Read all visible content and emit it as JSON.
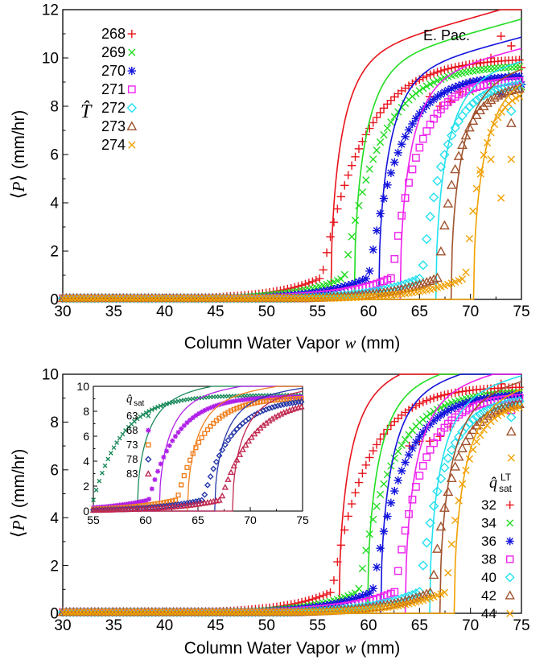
{
  "chart_data": [
    {
      "type": "scatter",
      "annotation": "E. Pac.",
      "xlabel_text": "Column Water Vapor ",
      "xlabel_var": "w",
      "xlabel_unit": " (mm)",
      "ylabel_text": "(mm/hr)",
      "legend_title": "T̂",
      "xlim": [
        30,
        75
      ],
      "ylim": [
        0,
        12
      ],
      "xticks": [
        "30",
        "35",
        "40",
        "45",
        "50",
        "55",
        "60",
        "65",
        "70",
        "75"
      ],
      "yticks": [
        "0",
        "2",
        "4",
        "6",
        "8",
        "10",
        "12"
      ],
      "series": [
        {
          "name": "268",
          "marker": "plus",
          "color": "#e8141c",
          "onset": 55.4,
          "fit_onset": 56.3,
          "sat": 10.0,
          "k": 0.11,
          "pts": [
            [
              66,
              8.4
            ],
            [
              67,
              8.0
            ],
            [
              68,
              8.2
            ],
            [
              69,
              8.6
            ],
            [
              70,
              9.0
            ],
            [
              71,
              9.8
            ],
            [
              72,
              10.0
            ],
            [
              73,
              10.9
            ],
            [
              74,
              10.5
            ],
            [
              75,
              9.6
            ]
          ]
        },
        {
          "name": "269",
          "marker": "x",
          "color": "#22dd22",
          "onset": 57.6,
          "fit_onset": 58.6,
          "sat": 9.7,
          "k": 0.13,
          "pts": [
            [
              70,
              8.6
            ],
            [
              72,
              9.0
            ],
            [
              74,
              9.3
            ],
            [
              75,
              8.8
            ]
          ]
        },
        {
          "name": "270",
          "marker": "star",
          "color": "#1414dd",
          "onset": 60.0,
          "fit_onset": 61.0,
          "sat": 9.3,
          "k": 0.15,
          "pts": [
            [
              73,
              8.5
            ],
            [
              75,
              8.9
            ]
          ]
        },
        {
          "name": "271",
          "marker": "square",
          "color": "#ee22ee",
          "onset": 62.3,
          "fit_onset": 63.1,
          "sat": 9.1,
          "k": 0.18,
          "pts": [
            [
              74,
              8.8
            ]
          ]
        },
        {
          "name": "272",
          "marker": "diamond",
          "color": "#22e0ee",
          "onset": 65.2,
          "fit_onset": 66.6,
          "sat": 9.0,
          "k": 0.2,
          "pts": [
            [
              74,
              7.8
            ]
          ]
        },
        {
          "name": "273",
          "marker": "triangle",
          "color": "#a0522d",
          "onset": 66.8,
          "fit_onset": 68.1,
          "sat": 8.9,
          "k": 0.22,
          "pts": [
            [
              74,
              7.3
            ]
          ]
        },
        {
          "name": "274",
          "marker": "x",
          "color": "#f0a000",
          "onset": 69.5,
          "fit_onset": 70.3,
          "sat": 8.8,
          "k": 0.26,
          "pts": [
            [
              71,
              5.2
            ],
            [
              72,
              5.8
            ],
            [
              73,
              4.2
            ],
            [
              74,
              5.8
            ]
          ]
        }
      ]
    },
    {
      "type": "scatter",
      "xlabel_text": "Column Water Vapor ",
      "xlabel_var": "w",
      "xlabel_unit": " (mm)",
      "ylabel_text": "(mm/hr)",
      "legend_title_sup": "LT",
      "legend_title_sub": "sat",
      "xlim": [
        30,
        75
      ],
      "ylim": [
        0,
        10
      ],
      "xticks": [
        "30",
        "35",
        "40",
        "45",
        "50",
        "55",
        "60",
        "65",
        "70",
        "75"
      ],
      "yticks": [
        "0",
        "2",
        "4",
        "6",
        "8",
        "10"
      ],
      "series": [
        {
          "name": "32",
          "marker": "plus",
          "color": "#e8141c",
          "onset": 56.4,
          "fit_onset": 57.1,
          "sat": 9.5,
          "k": 0.13,
          "pts": [
            [
              64,
              7.0
            ],
            [
              65,
              7.2
            ],
            [
              66,
              7.2
            ],
            [
              67,
              7.4
            ],
            [
              68,
              7.8
            ],
            [
              70,
              8.8
            ],
            [
              72,
              9.2
            ],
            [
              73,
              9.6
            ],
            [
              74,
              9.2
            ]
          ]
        },
        {
          "name": "34",
          "marker": "x",
          "color": "#22dd22",
          "onset": 59.0,
          "fit_onset": 59.9,
          "sat": 9.3,
          "k": 0.14,
          "pts": [
            [
              73,
              8.7
            ]
          ]
        },
        {
          "name": "36",
          "marker": "star",
          "color": "#1414dd",
          "onset": 60.4,
          "fit_onset": 61.2,
          "sat": 9.2,
          "k": 0.15,
          "pts": [
            [
              74,
              8.7
            ]
          ]
        },
        {
          "name": "38",
          "marker": "square",
          "color": "#ee22ee",
          "onset": 62.6,
          "fit_onset": 63.6,
          "sat": 9.1,
          "k": 0.17,
          "pts": [
            [
              74,
              8.5
            ]
          ]
        },
        {
          "name": "40",
          "marker": "diamond",
          "color": "#22e0ee",
          "onset": 65.0,
          "fit_onset": 66.0,
          "sat": 9.0,
          "k": 0.19,
          "pts": [
            [
              74,
              8.2
            ]
          ]
        },
        {
          "name": "42",
          "marker": "triangle",
          "color": "#a0522d",
          "onset": 66.2,
          "fit_onset": 67.0,
          "sat": 8.9,
          "k": 0.21,
          "pts": [
            [
              74,
              7.6
            ]
          ]
        },
        {
          "name": "44",
          "marker": "x",
          "color": "#f0a000",
          "onset": 67.6,
          "fit_onset": 68.4,
          "sat": 8.8,
          "k": 0.24,
          "pts": [
            [
              74,
              6.5
            ]
          ]
        }
      ]
    },
    {
      "type": "scatter",
      "role": "inset",
      "legend_title_sub": "sat",
      "xlim": [
        55,
        75
      ],
      "ylim": [
        0,
        10
      ],
      "xticks": [
        "55",
        "60",
        "65",
        "70",
        "75"
      ],
      "yticks": [
        "0",
        "2",
        "4",
        "6",
        "8",
        "10"
      ],
      "series": [
        {
          "name": "63",
          "marker": "x",
          "color": "#1a8a5a",
          "onset": 55.0,
          "fit_onset": 59.2,
          "sat": 9.3,
          "k": 0.16,
          "pts": []
        },
        {
          "name": "68",
          "marker": "star",
          "color": "#b020e8",
          "onset": 60.3,
          "fit_onset": 61.3,
          "sat": 9.2,
          "k": 0.17,
          "pts": []
        },
        {
          "name": "73",
          "marker": "square",
          "color": "#f08020",
          "onset": 63.0,
          "fit_onset": 64.0,
          "sat": 9.1,
          "k": 0.18,
          "pts": []
        },
        {
          "name": "78",
          "marker": "diamond",
          "color": "#2838a8",
          "onset": 65.5,
          "fit_onset": 66.6,
          "sat": 9.0,
          "k": 0.17,
          "pts": []
        },
        {
          "name": "83",
          "marker": "triangle",
          "color": "#c02850",
          "onset": 67.2,
          "fit_onset": 68.3,
          "sat": 9.0,
          "k": 0.15,
          "pts": []
        }
      ]
    }
  ]
}
